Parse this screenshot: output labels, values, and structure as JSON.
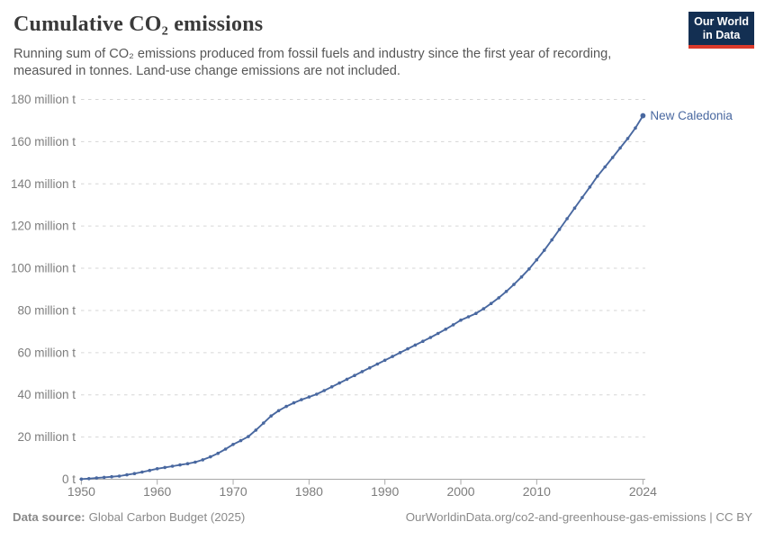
{
  "header": {
    "title": "Cumulative CO₂ emissions",
    "subtitle": "Running sum of CO₂ emissions produced from fossil fuels and industry since the first year of recording, measured in tonnes. Land-use change emissions are not included.",
    "logo": {
      "line1": "Our World",
      "line2": "in Data"
    }
  },
  "chart_data": {
    "type": "line",
    "title": "Cumulative CO₂ emissions",
    "entity_label": "New Caledonia",
    "unit": "tonnes",
    "values_unit": "million tonnes",
    "xlabel": "",
    "ylabel": "",
    "xlim": [
      1950,
      2024
    ],
    "ylim_millions": [
      0,
      180
    ],
    "grid": "dashed-horizontal",
    "legend_position": "line-end-right",
    "x": [
      1950,
      1951,
      1952,
      1953,
      1954,
      1955,
      1956,
      1957,
      1958,
      1959,
      1960,
      1961,
      1962,
      1963,
      1964,
      1965,
      1966,
      1967,
      1968,
      1969,
      1970,
      1971,
      1972,
      1973,
      1974,
      1975,
      1976,
      1977,
      1978,
      1979,
      1980,
      1981,
      1982,
      1983,
      1984,
      1985,
      1986,
      1987,
      1988,
      1989,
      1990,
      1991,
      1992,
      1993,
      1994,
      1995,
      1996,
      1997,
      1998,
      1999,
      2000,
      2001,
      2002,
      2003,
      2004,
      2005,
      2006,
      2007,
      2008,
      2009,
      2010,
      2011,
      2012,
      2013,
      2014,
      2015,
      2016,
      2017,
      2018,
      2019,
      2020,
      2021,
      2022,
      2023,
      2024
    ],
    "series": [
      {
        "name": "New Caledonia",
        "color": "#4968a0",
        "values_million_t": [
          0.1,
          0.3,
          0.6,
          0.9,
          1.2,
          1.5,
          2.1,
          2.7,
          3.4,
          4.2,
          5.0,
          5.6,
          6.2,
          6.8,
          7.4,
          8.1,
          9.2,
          10.6,
          12.3,
          14.3,
          16.5,
          18.3,
          20.2,
          23.3,
          26.6,
          30.0,
          32.5,
          34.5,
          36.2,
          37.7,
          39.0,
          40.3,
          42.0,
          43.8,
          45.6,
          47.4,
          49.2,
          51.0,
          52.8,
          54.6,
          56.4,
          58.2,
          60.0,
          61.8,
          63.6,
          65.4,
          67.2,
          69.1,
          71.1,
          73.2,
          75.4,
          77.0,
          78.6,
          80.8,
          83.3,
          86.0,
          89.0,
          92.3,
          95.9,
          99.7,
          104.0,
          108.5,
          113.4,
          118.4,
          123.5,
          128.5,
          133.5,
          138.5,
          143.6,
          148.0,
          152.5,
          157.0,
          161.5,
          166.5,
          172.3
        ]
      }
    ],
    "ytick_values_millions": [
      0,
      20,
      40,
      60,
      80,
      100,
      120,
      140,
      160,
      180
    ],
    "ytick_labels": [
      "0 t",
      "20 million t",
      "40 million t",
      "60 million t",
      "80 million t",
      "100 million t",
      "120 million t",
      "140 million t",
      "160 million t",
      "180 million t"
    ],
    "xtick_values": [
      1950,
      1960,
      1970,
      1980,
      1990,
      2000,
      2010,
      2024
    ],
    "xtick_labels": [
      "1950",
      "1960",
      "1970",
      "1980",
      "1990",
      "2000",
      "2010",
      "2024"
    ]
  },
  "colors": {
    "line": "#4968a0",
    "gridline": "#d6d6d6",
    "axis": "#a8a8a8",
    "tick_text": "#7d7d7d",
    "logo_bg": "#132f52",
    "logo_accent": "#dc3a2b"
  },
  "footer": {
    "datasource_label": "Data source:",
    "datasource_value": "Global Carbon Budget (2025)",
    "link": "OurWorldinData.org/co2-and-greenhouse-gas-emissions | CC BY"
  }
}
